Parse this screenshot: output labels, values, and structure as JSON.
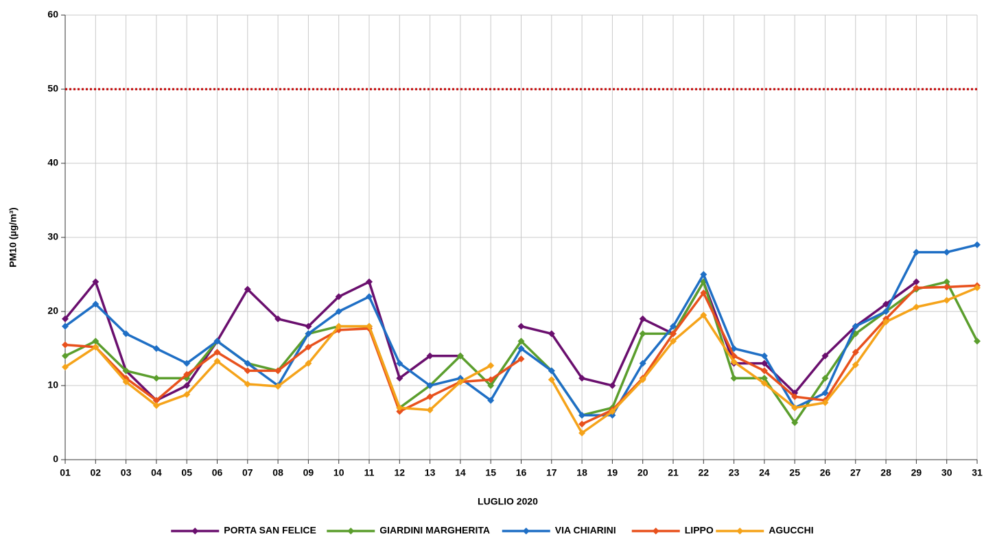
{
  "chart_data": {
    "type": "line",
    "x_label": "LUGLIO 2020",
    "y_label": "PM10 (µg/m³)",
    "categories": [
      "01",
      "02",
      "03",
      "04",
      "05",
      "06",
      "07",
      "08",
      "09",
      "10",
      "11",
      "12",
      "13",
      "14",
      "15",
      "16",
      "17",
      "18",
      "19",
      "20",
      "21",
      "22",
      "23",
      "24",
      "25",
      "26",
      "27",
      "28",
      "29",
      "30",
      "31"
    ],
    "ylim": [
      0,
      60
    ],
    "yticks": [
      0,
      10,
      20,
      30,
      40,
      50,
      60
    ],
    "grid": true,
    "reference_line": {
      "value": 50,
      "color": "#c00000"
    },
    "legend": "bottom",
    "series": [
      {
        "name": "PORTA SAN FELICE",
        "color": "#6a0f6e",
        "values": [
          19,
          24,
          12,
          8,
          10,
          16,
          23,
          19,
          18,
          22,
          24,
          11,
          14,
          14,
          null,
          18,
          17,
          11,
          10,
          19,
          17,
          24,
          13,
          13,
          9,
          14,
          18,
          21,
          24,
          null,
          null
        ]
      },
      {
        "name": "GIARDINI MARGHERITA",
        "color": "#5b9e2d",
        "values": [
          14,
          16,
          12,
          11,
          11,
          16,
          13,
          12,
          17,
          18,
          18,
          7,
          10,
          14,
          10,
          16,
          12,
          6,
          7,
          17,
          17,
          24,
          11,
          11,
          5,
          11,
          17,
          20,
          23,
          24,
          16
        ]
      },
      {
        "name": "VIA CHIARINI",
        "color": "#1f6fc5",
        "values": [
          18,
          21,
          17,
          15,
          13,
          16,
          13,
          10,
          17,
          20,
          22,
          13,
          10,
          11,
          8,
          15,
          12,
          6,
          6,
          13,
          18,
          25,
          15,
          14,
          7,
          9,
          18,
          20,
          28,
          28,
          29
        ]
      },
      {
        "name": "LIPPO",
        "color": "#e8511d",
        "values": [
          15.5,
          15.2,
          11,
          8,
          11.5,
          14.5,
          12,
          12,
          15.2,
          17.5,
          17.7,
          6.5,
          8.5,
          10.5,
          10.8,
          13.6,
          null,
          4.8,
          6.7,
          11,
          17,
          22.5,
          14,
          12,
          8.5,
          8,
          14.5,
          19,
          23.2,
          23.3,
          23.5
        ]
      },
      {
        "name": "AGUCCHI",
        "color": "#f5a31a",
        "values": [
          12.5,
          15.2,
          10.5,
          7.3,
          8.8,
          13.3,
          10.2,
          9.9,
          13,
          18,
          18,
          7,
          6.7,
          10.5,
          12.7,
          null,
          10.8,
          3.6,
          6.5,
          10.8,
          16,
          19.5,
          13.2,
          10.3,
          7,
          7.7,
          12.8,
          18.6,
          20.6,
          21.5,
          23.2
        ]
      }
    ]
  }
}
